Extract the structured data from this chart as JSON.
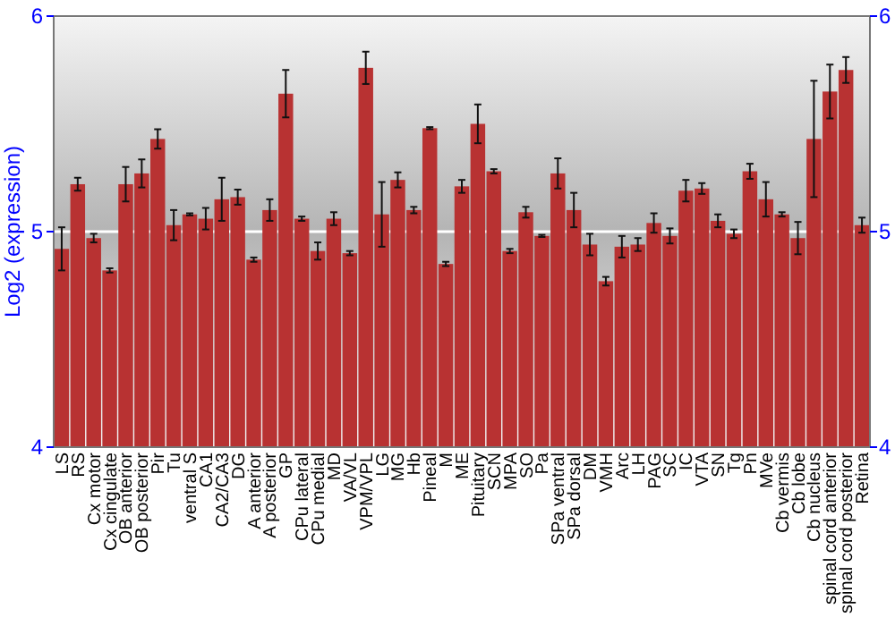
{
  "chart_data": {
    "type": "bar",
    "ylabel": "Log2 (expression)",
    "categories": [
      "LS",
      "RS",
      "Cx motor",
      "Cx cingulate",
      "OB anterior",
      "OB posterior",
      "Pir",
      "Tu",
      "ventral S",
      "CA1",
      "CA2/CA3",
      "DG",
      "A anterior",
      "A posterior",
      "GP",
      "CPu lateral",
      "CPu medial",
      "MD",
      "VA/VL",
      "VPM/VPL",
      "LG",
      "MG",
      "Hb",
      "Pineal",
      "M",
      "ME",
      "Pituitary",
      "SCN",
      "MPA",
      "SO",
      "Pa",
      "SPa ventral",
      "SPa dorsal",
      "DM",
      "VMH",
      "Arc",
      "LH",
      "PAG",
      "SC",
      "IC",
      "VTA",
      "SN",
      "Tg",
      "Pn",
      "MVe",
      "Cb vermis",
      "Cb lobe",
      "Cb nucleus",
      "spinal cord anterior",
      "spinal cord posterior",
      "Retina"
    ],
    "values": [
      4.92,
      5.22,
      4.97,
      4.82,
      5.22,
      5.27,
      5.43,
      5.03,
      5.08,
      5.06,
      5.15,
      5.16,
      4.87,
      5.1,
      5.64,
      5.06,
      4.91,
      5.06,
      4.9,
      5.76,
      5.08,
      5.24,
      5.1,
      5.48,
      4.85,
      5.21,
      5.5,
      5.28,
      4.91,
      5.09,
      4.98,
      5.27,
      5.1,
      4.94,
      4.77,
      4.93,
      4.94,
      5.04,
      4.98,
      5.19,
      5.2,
      5.05,
      4.99,
      5.28,
      5.15,
      5.08,
      4.97,
      5.43,
      5.65,
      5.75,
      5.03
    ],
    "errors": [
      0.1,
      0.03,
      0.02,
      0.01,
      0.08,
      0.065,
      0.045,
      0.07,
      0.005,
      0.05,
      0.1,
      0.035,
      0.01,
      0.05,
      0.11,
      0.01,
      0.04,
      0.03,
      0.01,
      0.075,
      0.15,
      0.035,
      0.015,
      0.005,
      0.01,
      0.03,
      0.09,
      0.01,
      0.01,
      0.025,
      0.005,
      0.07,
      0.08,
      0.05,
      0.02,
      0.05,
      0.03,
      0.045,
      0.035,
      0.05,
      0.025,
      0.03,
      0.02,
      0.035,
      0.08,
      0.01,
      0.075,
      0.27,
      0.125,
      0.06,
      0.035
    ],
    "color": "#b83232",
    "ylim": [
      4,
      6
    ],
    "yticks": [
      4,
      5,
      6
    ],
    "y2lim": [
      4,
      6
    ],
    "y2ticks": [
      4,
      5,
      6
    ],
    "grid": "y"
  }
}
